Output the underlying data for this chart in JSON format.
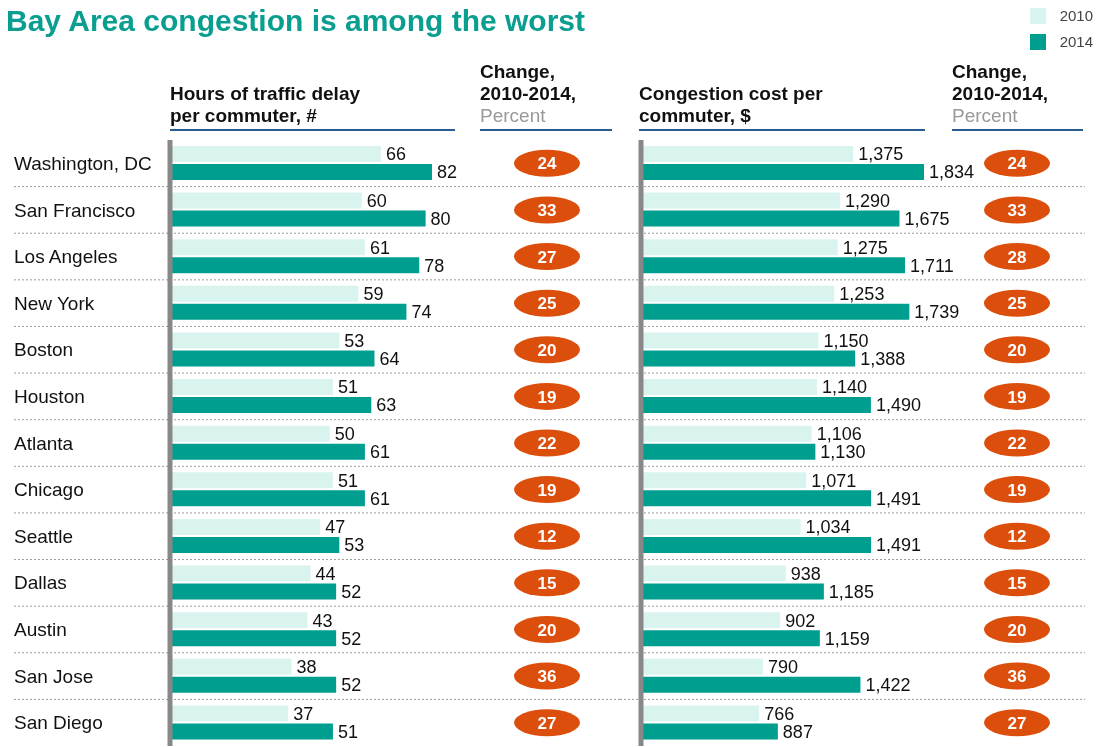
{
  "chart_data": [
    {
      "type": "other",
      "title": "Bay Area congestion is among the worst"
    },
    {
      "type": "bar",
      "orientation": "horizontal",
      "title": "Hours of traffic delay per commuter, #",
      "categories": [
        "Washington, DC",
        "San Francisco",
        "Los Angeles",
        "New York",
        "Boston",
        "Houston",
        "Atlanta",
        "Chicago",
        "Seattle",
        "Dallas",
        "Austin",
        "San Jose",
        "San Diego"
      ],
      "series": [
        {
          "color": "#d9f3ef",
          "values": [
            66,
            60,
            61,
            59,
            53,
            51,
            50,
            51,
            47,
            44,
            43,
            38,
            37
          ]
        },
        {
          "color": "#009e8e",
          "values": [
            82,
            80,
            78,
            74,
            64,
            63,
            61,
            61,
            53,
            52,
            52,
            52,
            51
          ]
        }
      ],
      "data_labels": true,
      "grid": "y",
      "tick_labels": "y"
    },
    {
      "type": "other",
      "title": "Change, 2010-2014,",
      "subtitle": "Percent",
      "values": [
        24,
        33,
        27,
        25,
        20,
        19,
        22,
        19,
        12,
        15,
        20,
        36,
        27
      ],
      "color": "#dc4e0c",
      "data_labels": true
    },
    {
      "type": "bar",
      "orientation": "horizontal",
      "title": "Congestion cost per commuter, $",
      "categories": [
        null,
        null,
        null,
        null,
        null,
        null,
        null,
        null,
        null,
        null,
        null,
        null,
        null
      ],
      "series": [
        {
          "name": "2010",
          "color": "#d9f3ef",
          "values": [
            1375,
            1290,
            1275,
            1253,
            1150,
            1140,
            1106,
            1071,
            1034,
            938,
            902,
            790,
            766
          ],
          "value_labels": [
            "1,375",
            "1,290",
            "1,275",
            "1,253",
            "1,150",
            "1,140",
            "1,106",
            "1,071",
            "1,034",
            "938",
            "902",
            "790",
            "766"
          ]
        },
        {
          "name": "2014",
          "color": "#009e8e",
          "values": [
            1834,
            1675,
            1711,
            1739,
            1388,
            1490,
            1130,
            1491,
            1491,
            1185,
            1159,
            1422,
            887
          ],
          "value_labels": [
            "1,834",
            "1,675",
            "1,711",
            "1,739",
            "1,388",
            "1,490",
            "1,130",
            "1,491",
            "1,491",
            "1,185",
            "1,159",
            "1,422",
            "887"
          ]
        }
      ],
      "grid": "y",
      "tick_labels": false,
      "legend": "top right"
    },
    {
      "type": "other",
      "title": "Change, 2010-2014,",
      "subtitle": "Percent",
      "values": [
        24,
        33,
        28,
        25,
        20,
        19,
        22,
        19,
        12,
        15,
        20,
        36,
        27
      ],
      "color": "#dc4e0c",
      "data_labels": true
    }
  ]
}
